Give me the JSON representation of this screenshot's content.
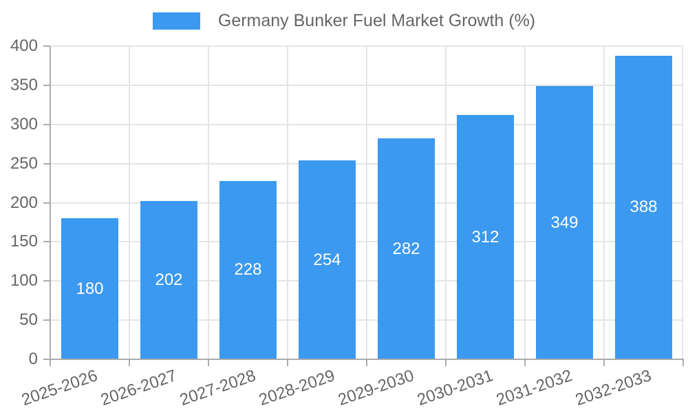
{
  "chart_data": {
    "type": "bar",
    "legend_label": "Germany Bunker Fuel Market Growth (%)",
    "categories": [
      "2025-2026",
      "2026-2027",
      "2027-2028",
      "2028-2029",
      "2029-2030",
      "2030-2031",
      "2031-2032",
      "2032-2033"
    ],
    "values": [
      180,
      202,
      228,
      254,
      282,
      312,
      349,
      388
    ],
    "value_labels": [
      "180",
      "202",
      "228",
      "254",
      "282",
      "312",
      "349",
      "388"
    ],
    "xlabel": "",
    "ylabel": "",
    "ylim": [
      0,
      400
    ],
    "ytick_step": 50,
    "yticks": [
      0,
      50,
      100,
      150,
      200,
      250,
      300,
      350,
      400
    ],
    "grid": true,
    "legend_position": "top",
    "colors": {
      "bar": "#3B99F0",
      "grid": "#E5E5E5",
      "axis": "#ABABAB",
      "tick_text": "#666666",
      "value_label": "#FFFFFF",
      "background": "#FFFFFF"
    }
  }
}
